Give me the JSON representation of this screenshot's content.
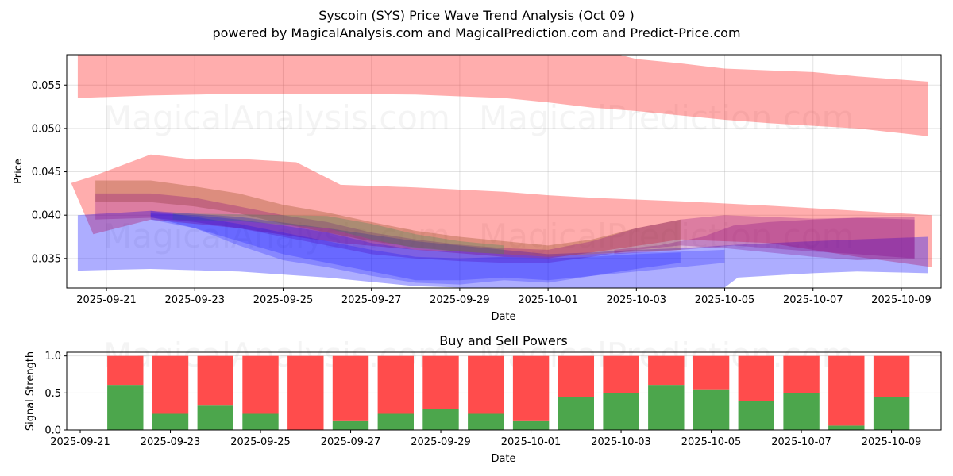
{
  "header": {
    "title": "Syscoin (SYS) Price Wave Trend Analysis (Oct 09 )",
    "subtitle": "powered by MagicalAnalysis.com and MagicalPrediction.com and Predict-Price.com"
  },
  "watermarks": [
    "MagicalAnalysis.com",
    "MagicalPrediction.com"
  ],
  "colors": {
    "red_band": "#ff0000",
    "blue_band": "#0000ff",
    "brown_band": "#8b4513",
    "purple_band": "#800080",
    "green_band": "#2e8b57",
    "buy": "#4ca64c",
    "sell": "#ff4c4c"
  },
  "chart_data": [
    {
      "type": "area",
      "title": "",
      "xlabel": "Date",
      "ylabel": "Price",
      "xlim": [
        "2025-09-20.1",
        "2025-10-09.9"
      ],
      "xlim_days_from_2025-09-21": [
        -0.9,
        18.9
      ],
      "ylim": [
        0.0316,
        0.0585
      ],
      "grid": true,
      "x_ticks": [
        "2025-09-21",
        "2025-09-23",
        "2025-09-25",
        "2025-09-27",
        "2025-09-29",
        "2025-10-01",
        "2025-10-03",
        "2025-10-05",
        "2025-10-07",
        "2025-10-09"
      ],
      "y_ticks": [
        "0.035",
        "0.040",
        "0.045",
        "0.050",
        "0.055"
      ],
      "y_tick_values": [
        0.035,
        0.04,
        0.045,
        0.05,
        0.055
      ],
      "note": "x values are days offset from 2025-09-21; bands are price ranges (upper/lower)",
      "series": [
        {
          "name": "upper-red-wave",
          "color": "red",
          "opacity": 0.32,
          "x": [
            -0.65,
            1,
            3,
            5,
            7,
            8,
            9,
            10,
            11,
            12,
            13,
            14,
            15,
            16,
            17,
            18.6
          ],
          "upper": [
            0.06,
            0.06,
            0.06,
            0.06,
            0.06,
            0.06,
            0.06,
            0.06,
            0.0593,
            0.058,
            0.0575,
            0.0569,
            0.0567,
            0.0565,
            0.056,
            0.0554
          ],
          "lower": [
            0.0535,
            0.0538,
            0.054,
            0.054,
            0.0539,
            0.0537,
            0.0535,
            0.053,
            0.0524,
            0.052,
            0.0515,
            0.051,
            0.0506,
            0.0503,
            0.05,
            0.0491
          ]
        },
        {
          "name": "middle-red-wave",
          "color": "red",
          "opacity": 0.32,
          "x": [
            -0.8,
            -0.3,
            1,
            2,
            3,
            4.3,
            5.3,
            7,
            9,
            10,
            11,
            13,
            15,
            17,
            18.7
          ],
          "upper": [
            0.0437,
            0.0445,
            0.047,
            0.0464,
            0.0465,
            0.0461,
            0.0435,
            0.0432,
            0.0427,
            0.0423,
            0.042,
            0.0416,
            0.0411,
            0.0405,
            0.04
          ],
          "lower": [
            0.0437,
            0.0378,
            0.0395,
            0.039,
            0.0385,
            0.0375,
            0.0368,
            0.036,
            0.0352,
            0.035,
            0.0357,
            0.0372,
            0.0368,
            0.0352,
            0.034
          ]
        },
        {
          "name": "lower-blue-wave",
          "color": "blue",
          "opacity": 0.32,
          "x": [
            -0.65,
            1,
            3,
            5,
            7,
            9,
            10,
            11,
            12,
            13,
            13.7,
            14.3,
            16,
            17,
            18.6
          ],
          "upper": [
            0.04,
            0.0405,
            0.0398,
            0.0385,
            0.037,
            0.036,
            0.0355,
            0.0357,
            0.036,
            0.0362,
            0.0364,
            0.0366,
            0.037,
            0.0372,
            0.0375
          ],
          "lower": [
            0.0336,
            0.0338,
            0.0335,
            0.0328,
            0.0318,
            0.0315,
            0.0314,
            0.0313,
            0.0308,
            0.03,
            0.0305,
            0.0328,
            0.0333,
            0.0335,
            0.0333
          ]
        },
        {
          "name": "brown-wave",
          "color": "brown",
          "opacity": 0.3,
          "x": [
            -0.25,
            1,
            2,
            3,
            4,
            5,
            6,
            7,
            8,
            9,
            10,
            11,
            12,
            13
          ],
          "upper": [
            0.044,
            0.044,
            0.0433,
            0.0425,
            0.0412,
            0.0403,
            0.0392,
            0.0382,
            0.0375,
            0.037,
            0.0365,
            0.0372,
            0.0385,
            0.0395
          ],
          "lower": [
            0.0415,
            0.0415,
            0.041,
            0.0402,
            0.039,
            0.038,
            0.037,
            0.0363,
            0.0358,
            0.0355,
            0.0352,
            0.0355,
            0.0358,
            0.036
          ]
        },
        {
          "name": "purple-wave-1",
          "color": "purple",
          "opacity": 0.28,
          "x": [
            -0.25,
            1,
            2,
            3,
            4,
            5,
            6,
            7,
            8,
            9,
            10,
            11,
            12,
            13,
            14,
            15,
            16,
            17,
            18.3
          ],
          "upper": [
            0.0425,
            0.0425,
            0.042,
            0.041,
            0.04,
            0.0392,
            0.038,
            0.0372,
            0.0366,
            0.0362,
            0.036,
            0.037,
            0.0385,
            0.0395,
            0.04,
            0.0398,
            0.0396,
            0.0397,
            0.0398
          ],
          "lower": [
            0.0395,
            0.0397,
            0.0392,
            0.0385,
            0.0375,
            0.0365,
            0.0355,
            0.035,
            0.0347,
            0.0345,
            0.0345,
            0.0352,
            0.036,
            0.0365,
            0.0362,
            0.0357,
            0.0352,
            0.0348,
            0.035
          ]
        },
        {
          "name": "purple-wave-2",
          "color": "purple",
          "opacity": 0.28,
          "x": [
            11.5,
            12.5,
            13.5,
            14.2,
            15,
            16,
            17,
            18.3
          ],
          "upper": [
            0.036,
            0.0365,
            0.0375,
            0.0388,
            0.0392,
            0.0395,
            0.0397,
            0.0395
          ],
          "lower": [
            0.0355,
            0.0358,
            0.0362,
            0.0365,
            0.0362,
            0.0358,
            0.0355,
            0.035
          ]
        },
        {
          "name": "green-wave",
          "color": "green",
          "opacity": 0.28,
          "x": [
            1.5,
            3,
            5,
            6,
            7,
            8,
            9
          ],
          "upper": [
            0.0402,
            0.0401,
            0.0399,
            0.039,
            0.0378,
            0.037,
            0.0365
          ],
          "lower": [
            0.0395,
            0.0393,
            0.0385,
            0.0372,
            0.0362,
            0.0358,
            0.0355
          ]
        },
        {
          "name": "blue-wave-1",
          "color": "blue",
          "opacity": 0.22,
          "x": [
            1,
            2,
            3,
            4,
            5,
            6,
            7,
            8,
            9,
            10,
            11,
            12,
            13,
            14
          ],
          "upper": [
            0.0402,
            0.04,
            0.0395,
            0.0388,
            0.038,
            0.0368,
            0.036,
            0.0358,
            0.0355,
            0.0352,
            0.0355,
            0.0357,
            0.0358,
            0.036
          ],
          "lower": [
            0.0395,
            0.0385,
            0.037,
            0.0355,
            0.0345,
            0.0335,
            0.0325,
            0.0325,
            0.0328,
            0.0325,
            0.033,
            0.0335,
            0.034,
            0.0345
          ]
        },
        {
          "name": "blue-wave-2",
          "color": "blue",
          "opacity": 0.22,
          "x": [
            1,
            2,
            3,
            4,
            5,
            6,
            7,
            8,
            9,
            10,
            11,
            12,
            13
          ],
          "upper": [
            0.0405,
            0.0398,
            0.039,
            0.038,
            0.037,
            0.036,
            0.0352,
            0.035,
            0.0352,
            0.035,
            0.0352,
            0.0355,
            0.0357
          ],
          "lower": [
            0.0398,
            0.0385,
            0.0365,
            0.0348,
            0.034,
            0.033,
            0.0322,
            0.032,
            0.0325,
            0.0322,
            0.033,
            0.0338,
            0.0345
          ]
        }
      ]
    },
    {
      "type": "bar",
      "stacked": true,
      "title": "Buy and Sell Powers",
      "xlabel": "Date",
      "ylabel": "Signal Strength",
      "ylim": [
        0,
        1.05
      ],
      "xlim_days_from_2025-09-21": [
        -0.3,
        19.1
      ],
      "grid": true,
      "x_ticks": [
        "2025-09-21",
        "2025-09-23",
        "2025-09-25",
        "2025-09-27",
        "2025-09-29",
        "2025-10-01",
        "2025-10-03",
        "2025-10-05",
        "2025-10-07",
        "2025-10-09"
      ],
      "y_ticks": [
        "0.0",
        "0.5",
        "1.0"
      ],
      "y_tick_values": [
        0,
        0.5,
        1.0
      ],
      "categories": [
        "2025-09-22",
        "2025-09-23",
        "2025-09-24",
        "2025-09-25",
        "2025-09-26",
        "2025-09-27",
        "2025-09-28",
        "2025-09-29",
        "2025-09-30",
        "2025-10-01",
        "2025-10-02",
        "2025-10-03",
        "2025-10-04",
        "2025-10-05",
        "2025-10-06",
        "2025-10-07",
        "2025-10-08",
        "2025-10-09"
      ],
      "series": [
        {
          "name": "Buy",
          "color": "green",
          "values": [
            0.61,
            0.22,
            0.33,
            0.22,
            0.0,
            0.12,
            0.22,
            0.28,
            0.22,
            0.12,
            0.45,
            0.5,
            0.61,
            0.55,
            0.39,
            0.5,
            0.06,
            0.45
          ]
        },
        {
          "name": "Sell",
          "color": "red",
          "values": [
            0.39,
            0.78,
            0.67,
            0.78,
            1.0,
            0.88,
            0.78,
            0.72,
            0.78,
            0.88,
            0.55,
            0.5,
            0.39,
            0.45,
            0.61,
            0.5,
            0.94,
            0.55
          ]
        }
      ]
    }
  ]
}
